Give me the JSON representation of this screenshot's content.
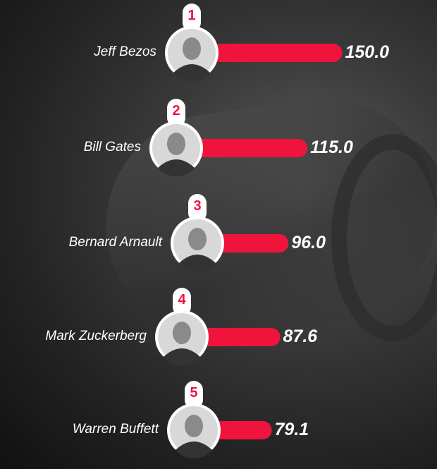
{
  "chart_data": {
    "type": "bar",
    "orientation": "horizontal",
    "categories": [
      "Jeff Bezos",
      "Bill Gates",
      "Bernard Arnault",
      "Mark Zuckerberg",
      "Warren Buffett"
    ],
    "ranks": [
      "1",
      "2",
      "3",
      "4",
      "5"
    ],
    "values": [
      150.0,
      115.0,
      96.0,
      87.6,
      79.1
    ],
    "value_labels": [
      "150.0",
      "115.0",
      "96.0",
      "87.6",
      "79.1"
    ],
    "bar_color": "#f0143c",
    "grid": false
  }
}
